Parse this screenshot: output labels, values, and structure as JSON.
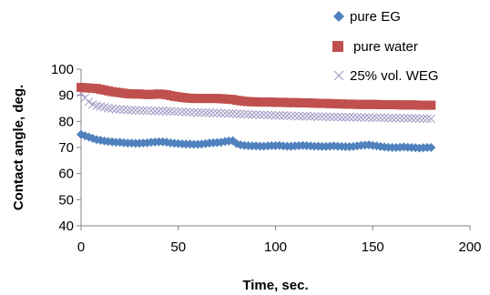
{
  "chart_data": {
    "type": "scatter",
    "xlabel": "Time, sec.",
    "ylabel": "Contact angle, deg.",
    "xlim": [
      0,
      200
    ],
    "ylim": [
      40,
      100
    ],
    "xticks": [
      0,
      50,
      100,
      150,
      200
    ],
    "yticks": [
      40,
      50,
      60,
      70,
      80,
      90,
      100
    ],
    "grid": false,
    "legend_position": "top-right",
    "series": [
      {
        "name": "pure EG",
        "marker": "diamond",
        "color": "#4F81BD",
        "x": [
          0,
          2,
          4,
          6,
          8,
          10,
          12,
          14,
          16,
          18,
          20,
          22,
          24,
          26,
          28,
          30,
          32,
          34,
          36,
          38,
          40,
          42,
          44,
          46,
          48,
          50,
          52,
          54,
          56,
          58,
          60,
          62,
          64,
          66,
          68,
          70,
          72,
          74,
          76,
          78,
          80,
          82,
          84,
          86,
          88,
          90,
          92,
          94,
          96,
          98,
          100,
          102,
          104,
          106,
          108,
          110,
          112,
          114,
          116,
          118,
          120,
          122,
          124,
          126,
          128,
          130,
          132,
          134,
          136,
          138,
          140,
          142,
          144,
          146,
          148,
          150,
          152,
          154,
          156,
          158,
          160,
          162,
          164,
          166,
          168,
          170,
          172,
          174,
          176,
          178,
          180
        ],
        "y": [
          75,
          74.5,
          74,
          73.5,
          73,
          72.8,
          72.5,
          72.3,
          72.2,
          72,
          72,
          71.8,
          71.7,
          71.7,
          71.6,
          71.6,
          71.7,
          71.8,
          72,
          72.1,
          72.2,
          72.2,
          72,
          71.8,
          71.6,
          71.5,
          71.4,
          71.3,
          71.3,
          71.2,
          71.2,
          71.3,
          71.5,
          71.7,
          71.8,
          71.9,
          72,
          72.3,
          72.5,
          72.6,
          71.5,
          71,
          70.8,
          70.7,
          70.6,
          70.6,
          70.5,
          70.5,
          70.6,
          70.7,
          70.7,
          70.8,
          70.6,
          70.5,
          70.5,
          70.6,
          70.7,
          70.8,
          70.7,
          70.6,
          70.5,
          70.5,
          70.4,
          70.4,
          70.5,
          70.6,
          70.5,
          70.4,
          70.3,
          70.3,
          70.4,
          70.6,
          70.8,
          70.9,
          71,
          70.8,
          70.6,
          70.4,
          70.2,
          70.1,
          70,
          70,
          70.1,
          70.2,
          70.1,
          70,
          69.9,
          69.8,
          69.9,
          70,
          70
        ]
      },
      {
        "name": "pure water",
        "marker": "square",
        "color": "#C0504D",
        "x": [
          0,
          2,
          4,
          6,
          8,
          10,
          12,
          14,
          16,
          18,
          20,
          22,
          24,
          26,
          28,
          30,
          32,
          34,
          36,
          38,
          40,
          42,
          44,
          46,
          48,
          50,
          52,
          54,
          56,
          58,
          60,
          62,
          64,
          66,
          68,
          70,
          72,
          74,
          76,
          78,
          80,
          82,
          84,
          86,
          88,
          90,
          92,
          94,
          96,
          98,
          100,
          102,
          104,
          106,
          108,
          110,
          112,
          114,
          116,
          118,
          120,
          122,
          124,
          126,
          128,
          130,
          132,
          134,
          136,
          138,
          140,
          142,
          144,
          146,
          148,
          150,
          152,
          154,
          156,
          158,
          160,
          162,
          164,
          166,
          168,
          170,
          172,
          174,
          176,
          178,
          180
        ],
        "y": [
          93,
          92.9,
          92.8,
          92.7,
          92.6,
          92.3,
          92,
          91.7,
          91.4,
          91.2,
          91,
          90.8,
          90.6,
          90.5,
          90.5,
          90.5,
          90.4,
          90.3,
          90.3,
          90.4,
          90.5,
          90.4,
          90.2,
          89.9,
          89.6,
          89.4,
          89.2,
          89,
          88.9,
          88.8,
          88.8,
          88.8,
          88.8,
          88.8,
          88.8,
          88.8,
          88.7,
          88.6,
          88.5,
          88.4,
          88.1,
          87.9,
          87.7,
          87.6,
          87.5,
          87.5,
          87.4,
          87.4,
          87.4,
          87.4,
          87.3,
          87.3,
          87.3,
          87.2,
          87.2,
          87.2,
          87.1,
          87.1,
          87.1,
          87,
          87,
          86.9,
          86.9,
          86.9,
          86.8,
          86.8,
          86.7,
          86.7,
          86.6,
          86.6,
          86.6,
          86.5,
          86.5,
          86.5,
          86.5,
          86.5,
          86.5,
          86.4,
          86.4,
          86.4,
          86.4,
          86.4,
          86.3,
          86.3,
          86.3,
          86.3,
          86.3,
          86.2,
          86.2,
          86.2,
          86.2
        ]
      },
      {
        "name": "25% vol. WEG",
        "marker": "x",
        "color": "#A499C4",
        "x": [
          0,
          2,
          4,
          6,
          8,
          10,
          12,
          14,
          16,
          18,
          20,
          22,
          24,
          26,
          28,
          30,
          32,
          34,
          36,
          38,
          40,
          42,
          44,
          46,
          48,
          50,
          52,
          54,
          56,
          58,
          60,
          62,
          64,
          66,
          68,
          70,
          72,
          74,
          76,
          78,
          80,
          82,
          84,
          86,
          88,
          90,
          92,
          94,
          96,
          98,
          100,
          102,
          104,
          106,
          108,
          110,
          112,
          114,
          116,
          118,
          120,
          122,
          124,
          126,
          128,
          130,
          132,
          134,
          136,
          138,
          140,
          142,
          144,
          146,
          148,
          150,
          152,
          154,
          156,
          158,
          160,
          162,
          164,
          166,
          168,
          170,
          172,
          174,
          176,
          178,
          180
        ],
        "y": [
          91,
          89,
          87.5,
          86.5,
          86,
          85.7,
          85.4,
          85.1,
          84.9,
          84.7,
          84.6,
          84.5,
          84.4,
          84.3,
          84.3,
          84.2,
          84.2,
          84.1,
          84.1,
          84,
          84,
          84,
          83.9,
          83.9,
          83.8,
          83.8,
          83.7,
          83.6,
          83.5,
          83.5,
          83.4,
          83.4,
          83.3,
          83.3,
          83.2,
          83.2,
          83.1,
          83.1,
          83,
          83,
          82.9,
          82.8,
          82.8,
          82.7,
          82.6,
          82.6,
          82.5,
          82.5,
          82.4,
          82.4,
          82.3,
          82.3,
          82.2,
          82.2,
          82.1,
          82.1,
          82,
          82,
          82,
          81.9,
          81.9,
          81.8,
          81.8,
          81.8,
          81.7,
          81.7,
          81.7,
          81.6,
          81.6,
          81.6,
          81.6,
          81.5,
          81.5,
          81.5,
          81.5,
          81.4,
          81.4,
          81.4,
          81.4,
          81.3,
          81.3,
          81.3,
          81.3,
          81.2,
          81.2,
          81.2,
          81.2,
          81.1,
          81.1,
          81.1,
          81
        ]
      }
    ]
  }
}
